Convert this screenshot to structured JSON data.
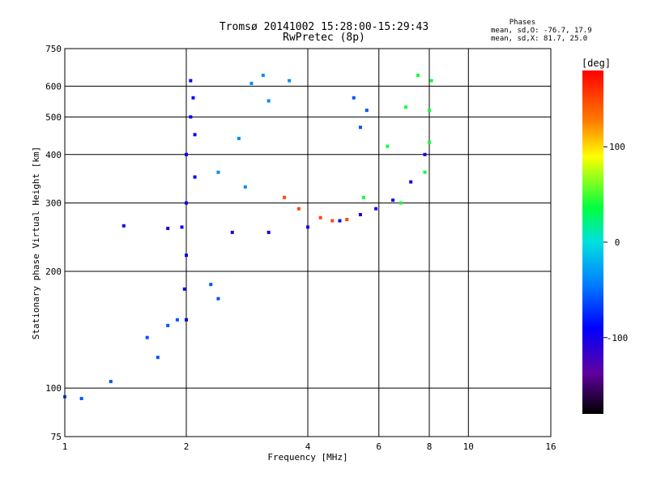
{
  "header": {
    "title_line1": "Tromsø 20141002 15:28:00-15:29:43",
    "title_line2": "RwPretec (8p)",
    "phases_title": "Phases",
    "phases_o": "mean, sd,O: -76.7, 17.9",
    "phases_x": "mean, sd,X:  81.7, 25.0"
  },
  "chart_data": {
    "type": "scatter",
    "title": "Tromsø 20141002 15:28:00-15:29:43",
    "subtitle": "RwPretec (8p)",
    "xlabel": "Frequency [MHz]",
    "ylabel": "Stationary phase Virtual Height [km]",
    "x_scale": "log",
    "y_scale": "log",
    "xlim": [
      1,
      16
    ],
    "ylim": [
      75,
      750
    ],
    "x_ticks": [
      1,
      2,
      4,
      6,
      8,
      10,
      16
    ],
    "y_ticks": [
      75,
      100,
      200,
      300,
      400,
      500,
      600,
      750
    ],
    "grid": true,
    "colorbar": {
      "label": "[deg]",
      "range": [
        -180,
        180
      ],
      "ticks": [
        100,
        0,
        -100
      ]
    },
    "series": [
      {
        "phase": -90,
        "points": [
          [
            2.0,
            150
          ],
          [
            2.0,
            220
          ],
          [
            2.0,
            300
          ],
          [
            2.0,
            400
          ],
          [
            2.05,
            500
          ],
          [
            2.05,
            620
          ],
          [
            2.1,
            350
          ],
          [
            1.95,
            260
          ],
          [
            1.98,
            180
          ],
          [
            2.1,
            450
          ],
          [
            2.08,
            560
          ]
        ]
      },
      {
        "phase": -100,
        "points": [
          [
            1.4,
            262
          ],
          [
            1.8,
            258
          ],
          [
            2.6,
            252
          ],
          [
            3.2,
            252
          ],
          [
            4.0,
            260
          ],
          [
            4.8,
            270
          ],
          [
            5.4,
            280
          ],
          [
            5.9,
            290
          ],
          [
            6.5,
            305
          ],
          [
            7.2,
            340
          ],
          [
            7.8,
            400
          ]
        ]
      },
      {
        "phase": -40,
        "points": [
          [
            2.8,
            330
          ],
          [
            2.4,
            360
          ],
          [
            2.7,
            440
          ],
          [
            3.2,
            550
          ],
          [
            3.6,
            620
          ],
          [
            2.9,
            610
          ],
          [
            3.1,
            640
          ]
        ]
      },
      {
        "phase": 40,
        "points": [
          [
            5.5,
            310
          ],
          [
            6.3,
            420
          ],
          [
            7.0,
            530
          ],
          [
            7.5,
            640
          ],
          [
            6.8,
            300
          ],
          [
            7.8,
            360
          ],
          [
            8.0,
            430
          ],
          [
            8.0,
            520
          ],
          [
            8.1,
            620
          ]
        ]
      },
      {
        "phase": 150,
        "points": [
          [
            3.5,
            310
          ],
          [
            3.8,
            290
          ],
          [
            4.3,
            275
          ],
          [
            4.6,
            270
          ],
          [
            5.0,
            272
          ]
        ]
      },
      {
        "phase": -60,
        "points": [
          [
            1.0,
            95
          ],
          [
            1.1,
            94
          ],
          [
            1.3,
            104
          ],
          [
            1.6,
            135
          ],
          [
            1.7,
            120
          ],
          [
            1.8,
            145
          ],
          [
            1.9,
            150
          ],
          [
            2.3,
            185
          ],
          [
            2.4,
            170
          ],
          [
            5.4,
            470
          ],
          [
            5.6,
            520
          ],
          [
            5.2,
            560
          ]
        ]
      }
    ]
  }
}
